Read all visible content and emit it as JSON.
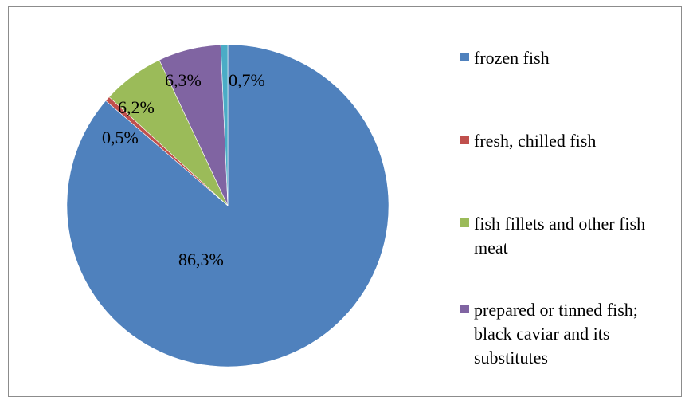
{
  "chart_data": {
    "type": "pie",
    "title": "",
    "legend_position": "right",
    "slices": [
      {
        "label": "frozen fish",
        "value": 86.3,
        "value_label": "86,3%",
        "color": "#4f81bd"
      },
      {
        "label": "fresh, chilled fish",
        "value": 0.5,
        "value_label": "0,5%",
        "color": "#c0504d"
      },
      {
        "label": "fish fillets and other fish meat",
        "value": 6.2,
        "value_label": "6,2%",
        "color": "#9bbb59"
      },
      {
        "label": "prepared or tinned fish; black caviar and its substitutes",
        "value": 6.3,
        "value_label": "6,3%",
        "color": "#8064a2"
      },
      {
        "label": "",
        "value": 0.7,
        "value_label": "0,7%",
        "color": "#4bacc6"
      }
    ]
  }
}
